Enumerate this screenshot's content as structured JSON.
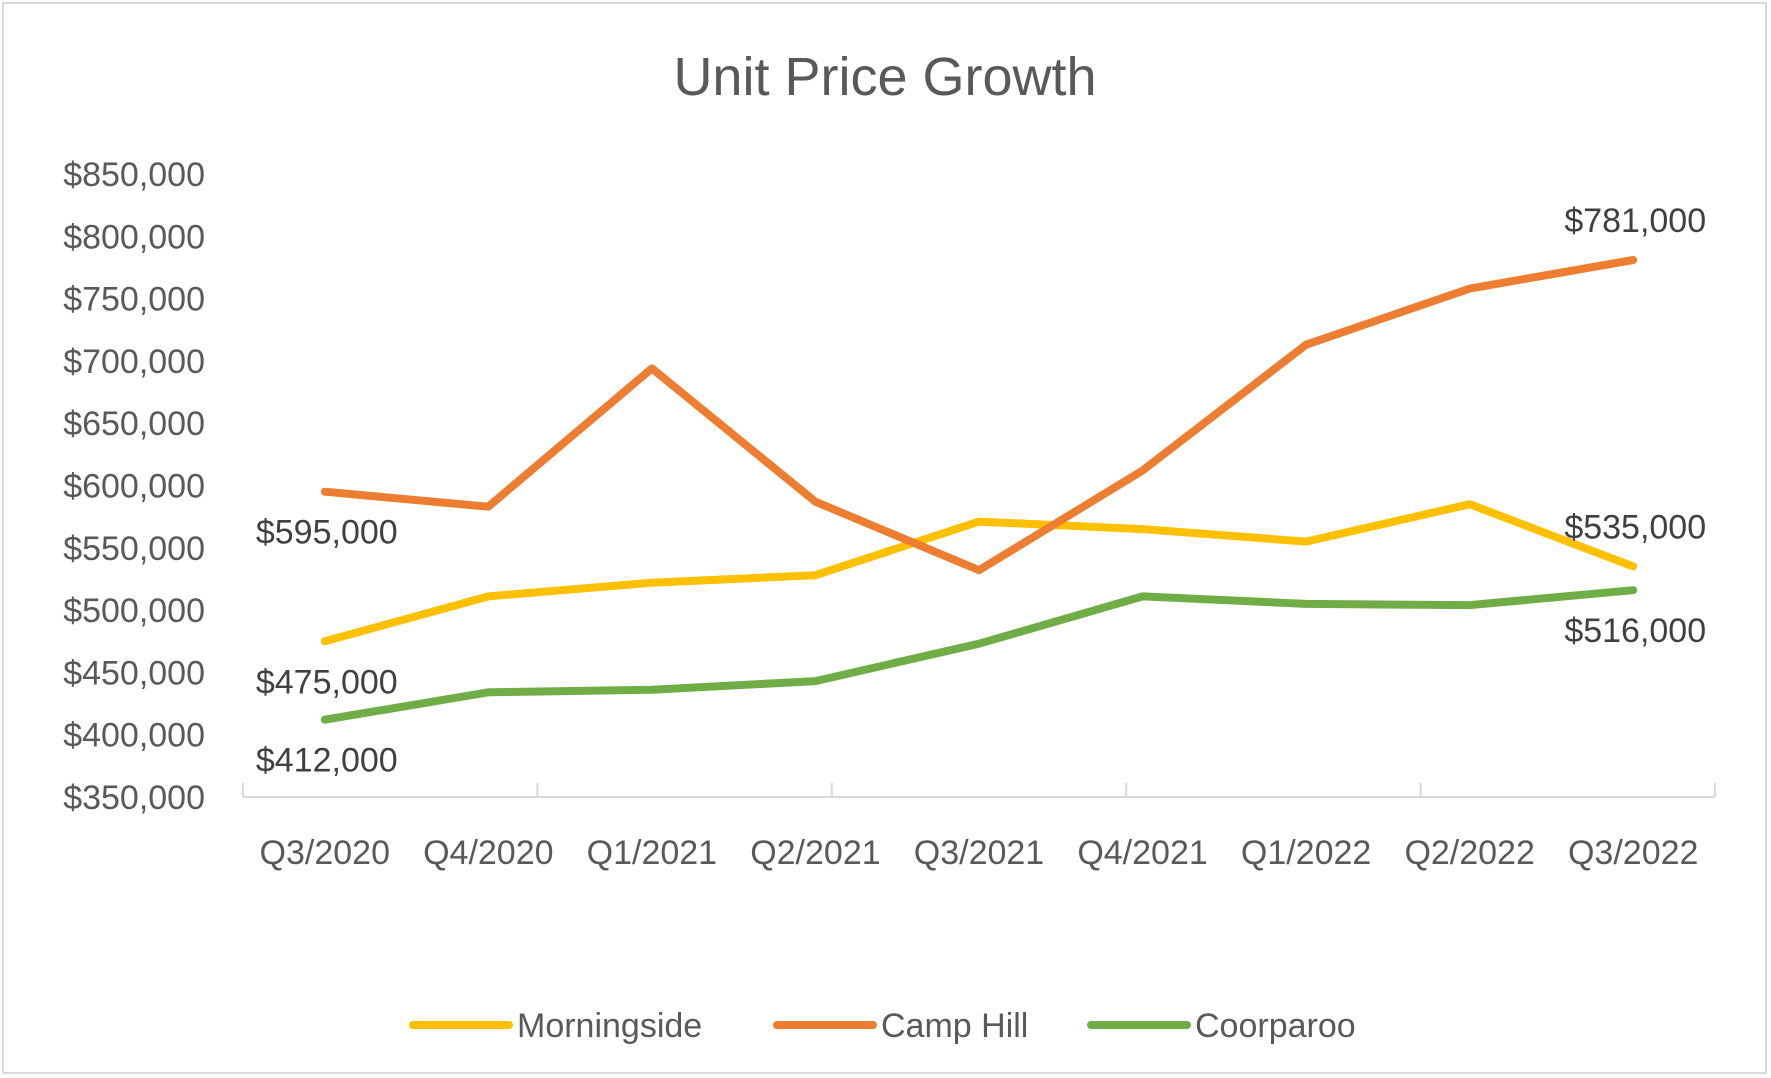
{
  "chart_data": {
    "type": "line",
    "title": "Unit Price Growth",
    "xlabel": "",
    "ylabel": "",
    "categories": [
      "Q3/2020",
      "Q4/2020",
      "Q1/2021",
      "Q2/2021",
      "Q3/2021",
      "Q4/2021",
      "Q1/2022",
      "Q2/2022",
      "Q3/2022"
    ],
    "ylim": [
      350000,
      850000
    ],
    "yticks": [
      350000,
      400000,
      450000,
      500000,
      550000,
      600000,
      650000,
      700000,
      750000,
      800000,
      850000
    ],
    "ytick_labels": [
      "$350,000",
      "$400,000",
      "$450,000",
      "$500,000",
      "$550,000",
      "$600,000",
      "$650,000",
      "$700,000",
      "$750,000",
      "$800,000",
      "$850,000"
    ],
    "grid": false,
    "legend_position": "bottom",
    "series": [
      {
        "name": "Morningside",
        "color": "#FFC000",
        "values": [
          475000,
          511000,
          522000,
          528000,
          571000,
          565000,
          555000,
          585000,
          535000
        ]
      },
      {
        "name": "Camp Hill",
        "color": "#ED7D31",
        "values": [
          595000,
          583000,
          694000,
          587000,
          532000,
          612000,
          713000,
          758000,
          781000
        ]
      },
      {
        "name": "Coorparoo",
        "color": "#70AD47",
        "values": [
          412000,
          434000,
          436000,
          443000,
          473000,
          511000,
          505000,
          504000,
          516000
        ]
      }
    ],
    "data_labels": [
      {
        "series": 1,
        "index": 0,
        "text": "$595,000",
        "placement": "below"
      },
      {
        "series": 0,
        "index": 0,
        "text": "$475,000",
        "placement": "below"
      },
      {
        "series": 2,
        "index": 0,
        "text": "$412,000",
        "placement": "below"
      },
      {
        "series": 1,
        "index": 8,
        "text": "$781,000",
        "placement": "above"
      },
      {
        "series": 0,
        "index": 8,
        "text": "$535,000",
        "placement": "above"
      },
      {
        "series": 2,
        "index": 8,
        "text": "$516,000",
        "placement": "below"
      }
    ]
  }
}
